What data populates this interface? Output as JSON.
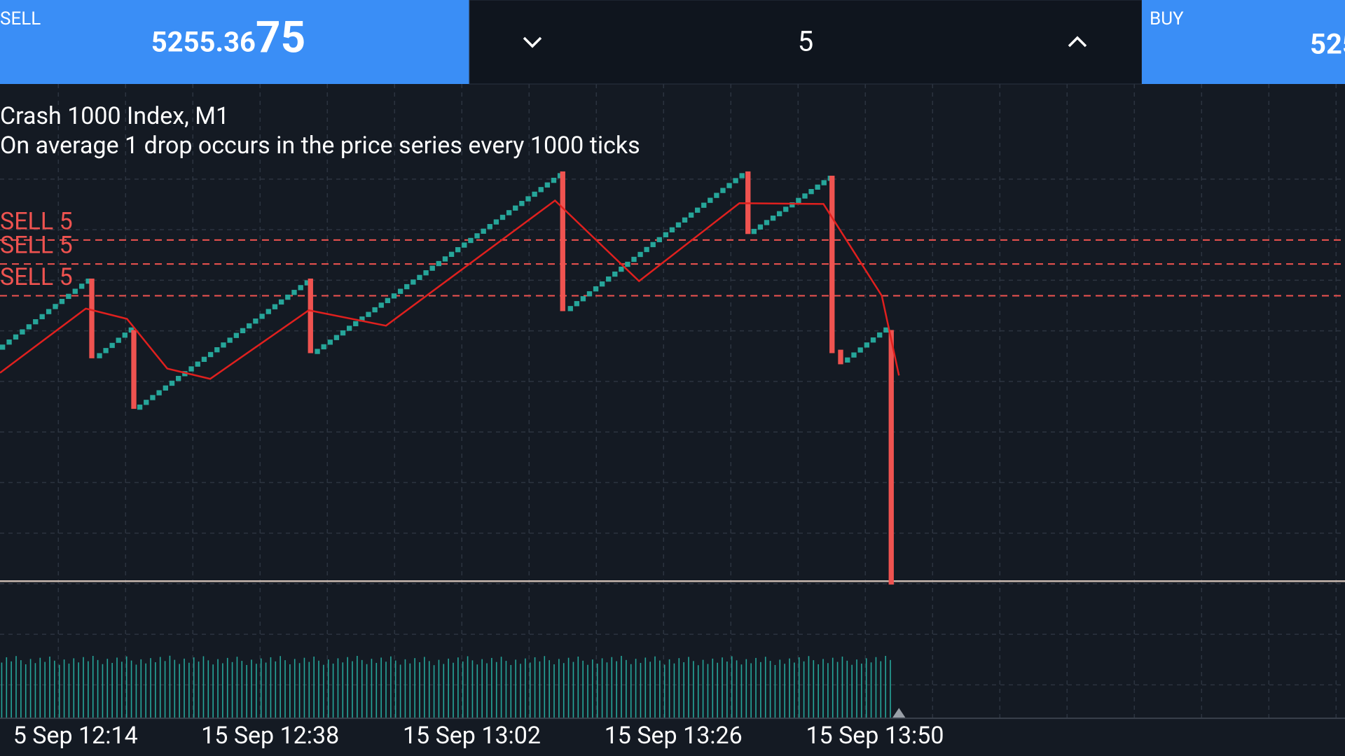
{
  "sell_panel": {
    "label": "SELL",
    "price_main": "5255.36",
    "price_big": "75"
  },
  "lot_panel": {
    "value": "5"
  },
  "buy_panel": {
    "label": "BUY",
    "price": "525"
  },
  "chart": {
    "title": "Crash 1000 Index, M1",
    "description": "On average 1 drop occurs in the price series every 1000 ticks",
    "order_lines": [
      "SELL 5",
      "SELL 5",
      "SELL 5"
    ],
    "time_labels": [
      "5 Sep 12:14",
      "15 Sep 12:38",
      "15 Sep 13:02",
      "15 Sep 13:26",
      "15 Sep 13:50"
    ]
  }
}
